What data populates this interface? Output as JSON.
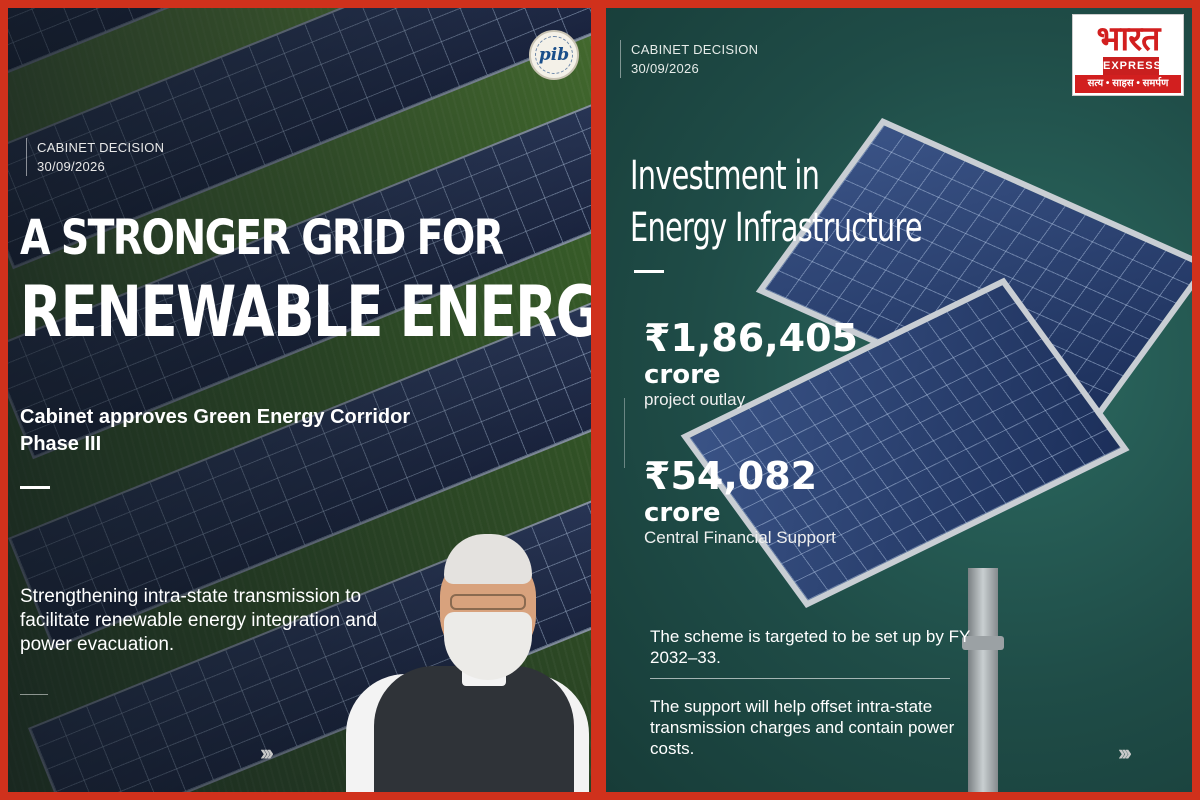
{
  "left": {
    "cabinet_label": "CABINET DECISION",
    "date": "30/09/2026",
    "headline_line1": "A STRONGER GRID FOR",
    "headline_line2": "RENEWABLE ENERGY",
    "subheadline": "Cabinet approves Green Energy Corridor Phase III",
    "body": "Strengthening intra-state transmission to facilitate renewable energy integration and power evacuation.",
    "logo_text": "pib",
    "arrows": "›››"
  },
  "right": {
    "cabinet_label": "CABINET DECISION",
    "date": "30/09/2026",
    "title_line1": "Investment in",
    "title_line2": "Energy Infrastructure",
    "amounts": [
      {
        "value": "₹1,86,405",
        "unit": "crore",
        "description": "project outlay"
      },
      {
        "value": "₹54,082",
        "unit": "crore",
        "description": "Central Financial Support"
      }
    ],
    "note1": "The scheme is targeted to be set up by FY 2032–33.",
    "note2": "The support will help offset intra-state transmission charges and contain power costs.",
    "arrows": "›››",
    "logo": {
      "name": "भारत",
      "sub": "EXPRESS",
      "tagline": "सत्य • साहस • समर्पण"
    }
  }
}
